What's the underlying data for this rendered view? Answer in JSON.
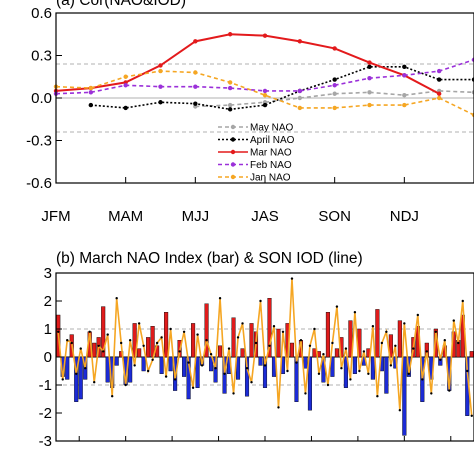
{
  "chart_data": [
    {
      "type": "line",
      "title": "(a) Cor(NAO&IOD)",
      "categories": [
        "JFM",
        "MAM",
        "MJJ",
        "JAS",
        "SON",
        "NDJ"
      ],
      "x": [
        0,
        1,
        2,
        3,
        4,
        5,
        6,
        7,
        8,
        9,
        10,
        11,
        12
      ],
      "ylim": [
        -0.6,
        0.6
      ],
      "yticks": [
        "-0.6",
        "-0.3",
        "0.0",
        "0.3",
        "0.6"
      ],
      "grid": true,
      "reference_lines": [
        {
          "y": 0.24,
          "style": "dashed",
          "color": "#999999"
        },
        {
          "y": -0.24,
          "style": "dashed",
          "color": "#999999"
        },
        {
          "y": 0.0,
          "style": "solid",
          "color": "#999999"
        }
      ],
      "legend_placement": "bottom-center",
      "series": [
        {
          "name": "May NAO",
          "color": "#a6a6a6",
          "style": "dashed",
          "marker": "circle",
          "values": [
            null,
            null,
            null,
            null,
            -0.06,
            -0.05,
            -0.03,
            0.0,
            0.03,
            0.04,
            0.02,
            0.05,
            0.04
          ]
        },
        {
          "name": "April NAO",
          "color": "#000000",
          "style": "dotted",
          "marker": "circle",
          "values": [
            null,
            -0.05,
            -0.07,
            -0.03,
            -0.04,
            -0.08,
            -0.05,
            0.05,
            0.13,
            0.22,
            0.22,
            0.13,
            0.13
          ]
        },
        {
          "name": "Mar NAO",
          "color": "#e31a1c",
          "style": "solid",
          "marker": "circle",
          "values": [
            0.05,
            0.07,
            0.11,
            0.23,
            0.4,
            0.45,
            0.44,
            0.4,
            0.35,
            0.25,
            0.16,
            0.03,
            null
          ]
        },
        {
          "name": "Feb NAO",
          "color": "#9b30d9",
          "style": "dashed",
          "marker": "circle",
          "values": [
            0.03,
            0.04,
            0.09,
            0.08,
            0.08,
            0.07,
            0.05,
            0.05,
            0.09,
            0.14,
            0.16,
            0.19,
            0.27
          ]
        },
        {
          "name": "Jan NAO",
          "color": "#f5a623",
          "style": "dashed",
          "marker": "circle",
          "values": [
            0.08,
            0.07,
            0.15,
            0.19,
            0.18,
            0.11,
            0.02,
            -0.07,
            -0.07,
            -0.05,
            -0.05,
            0.0,
            -0.12
          ]
        }
      ]
    },
    {
      "type": "bar",
      "title": "(b) March NAO Index (bar) & SON IOD (line)",
      "ylim": [
        -3,
        3
      ],
      "yticks": [
        "-3",
        "-2",
        "-1",
        "0",
        "1",
        "2",
        "3"
      ],
      "reference_lines": [
        {
          "y": 1,
          "style": "dashed",
          "color": "#999999"
        },
        {
          "y": -1,
          "style": "dashed",
          "color": "#999999"
        }
      ],
      "bar_colors": {
        "positive": "#e01b1b",
        "negative": "#1c2bd6"
      },
      "line_color": "#f5a623",
      "series": [
        {
          "kind": "bar",
          "values": [
            1.5,
            -0.7,
            -0.8,
            0.8,
            -1.6,
            -1.5,
            -0.8,
            0.9,
            0.5,
            0.7,
            1.8,
            -0.9,
            -1.1,
            -0.3,
            0.2,
            -1.0,
            -0.9,
            1.2,
            0.3,
            -0.5,
            0.7,
            1.1,
            0.4,
            -0.6,
            1.6,
            -0.5,
            -1.2,
            0.6,
            -0.7,
            -1.5,
            1.2,
            -1.1,
            -0.3,
            1.9,
            -0.5,
            -0.9,
            0.4,
            -1.3,
            -0.6,
            1.4,
            -0.8,
            0.3,
            -1.4,
            1.2,
            0.9,
            -0.3,
            -1.1,
            2.1,
            -0.7,
            1.0,
            -0.6,
            1.2,
            0.5,
            -1.6,
            0.6,
            -0.4,
            -1.9,
            0.3,
            0.2,
            -0.9,
            1.6,
            -0.7,
            0.3,
            0.7,
            -1.1,
            1.3,
            -0.6,
            1.0,
            -0.3,
            0.3,
            -0.8,
            1.7,
            -0.5,
            -1.3,
            0.8,
            -0.4,
            1.3,
            -2.8,
            -0.7,
            0.7,
            1.1,
            -1.6,
            0.5,
            -0.8,
            1.0,
            -0.3,
            0.4,
            -1.2,
            0.9,
            0.6,
            1.5,
            -2.1,
            0.2
          ]
        },
        {
          "kind": "line",
          "values": [
            0.9,
            -0.8,
            0.6,
            0.5,
            -0.6,
            0.3,
            -0.4,
            0.9,
            -0.9,
            0.4,
            0.2,
            0.8,
            -1.4,
            2.1,
            0.5,
            -1.0,
            0.6,
            -0.3,
            1.2,
            0.4,
            -0.5,
            -0.1,
            0.5,
            0.7,
            -0.7,
            1.0,
            -0.8,
            0.2,
            0.9,
            -0.2,
            -1.1,
            0.8,
            -0.3,
            0.6,
            0.1,
            -0.4,
            2.1,
            -0.6,
            0.3,
            -1.3,
            0.7,
            1.2,
            -0.4,
            -0.9,
            0.5,
            2.0,
            -0.3,
            0.4,
            1.1,
            -1.8,
            0.9,
            -0.5,
            2.8,
            -0.2,
            0.6,
            -1.3,
            0.4,
            1.0,
            -0.6,
            0.1,
            -1.0,
            0.5,
            1.8,
            -0.4,
            0.3,
            -0.8,
            1.6,
            -0.5,
            0.2,
            -0.6,
            1.1,
            -1.4,
            0.5,
            0.9,
            -0.3,
            0.4,
            -1.9,
            1.2,
            -0.6,
            0.3,
            1.5,
            -0.8,
            0.2,
            -1.3,
            0.9,
            -0.1,
            0.6,
            -1.2,
            1.3,
            0.5,
            2.0,
            -0.5,
            -2.1
          ]
        }
      ]
    }
  ]
}
